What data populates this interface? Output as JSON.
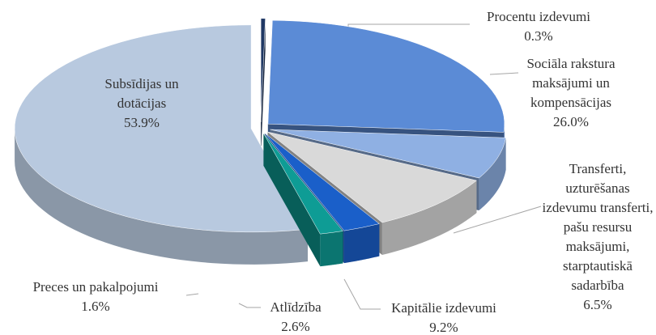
{
  "chart_data": {
    "type": "pie",
    "categories": [
      [
        "Procentu izdevumi"
      ],
      [
        "Sociāla rakstura",
        "maksājumi un",
        "kompensācijas"
      ],
      [
        "Transferti,",
        "uzturēšanas",
        "izdevumu transferti,",
        "pašu resursu",
        "maksājumi,",
        "starptautiskā",
        "sadarbība"
      ],
      [
        "Kapitālie izdevumi"
      ],
      [
        "Atlīdzība"
      ],
      [
        "Preces un pakalpojumi"
      ],
      [
        "Subsīdijas un",
        "dotācijas"
      ]
    ],
    "values": [
      0.3,
      26.0,
      6.5,
      9.2,
      2.6,
      1.6,
      53.9
    ],
    "value_labels": [
      "0.3%",
      "26.0%",
      "6.5%",
      "9.2%",
      "2.6%",
      "1.6%",
      "53.9%"
    ],
    "colors": [
      "#1f3864",
      "#5b8bd6",
      "#8fb0e3",
      "#d9d9d9",
      "#1a5fc9",
      "#0e9c95",
      "#b8c9df"
    ]
  }
}
